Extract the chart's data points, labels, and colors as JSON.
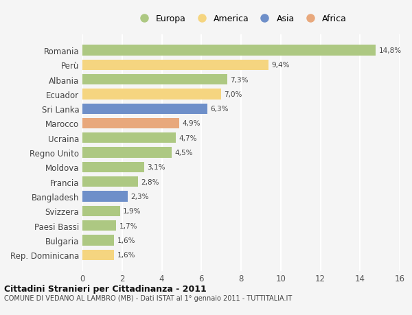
{
  "categories": [
    "Romania",
    "Perù",
    "Albania",
    "Ecuador",
    "Sri Lanka",
    "Marocco",
    "Ucraina",
    "Regno Unito",
    "Moldova",
    "Francia",
    "Bangladesh",
    "Svizzera",
    "Paesi Bassi",
    "Bulgaria",
    "Rep. Dominicana"
  ],
  "values": [
    14.8,
    9.4,
    7.3,
    7.0,
    6.3,
    4.9,
    4.7,
    4.5,
    3.1,
    2.8,
    2.3,
    1.9,
    1.7,
    1.6,
    1.6
  ],
  "labels": [
    "14,8%",
    "9,4%",
    "7,3%",
    "7,0%",
    "6,3%",
    "4,9%",
    "4,7%",
    "4,5%",
    "3,1%",
    "2,8%",
    "2,3%",
    "1,9%",
    "1,7%",
    "1,6%",
    "1,6%"
  ],
  "continents": [
    "Europa",
    "America",
    "Europa",
    "America",
    "Asia",
    "Africa",
    "Europa",
    "Europa",
    "Europa",
    "Europa",
    "Asia",
    "Europa",
    "Europa",
    "Europa",
    "America"
  ],
  "colors": {
    "Europa": "#adc882",
    "America": "#f5d580",
    "Asia": "#6e8fc9",
    "Africa": "#e8a87c"
  },
  "legend_order": [
    "Europa",
    "America",
    "Asia",
    "Africa"
  ],
  "xlim": [
    0,
    16
  ],
  "xticks": [
    0,
    2,
    4,
    6,
    8,
    10,
    12,
    14,
    16
  ],
  "title": "Cittadini Stranieri per Cittadinanza - 2011",
  "subtitle": "COMUNE DI VEDANO AL LAMBRO (MB) - Dati ISTAT al 1° gennaio 2011 - TUTTITALIA.IT",
  "background_color": "#f5f5f5",
  "grid_color": "#ffffff",
  "bar_height": 0.72
}
